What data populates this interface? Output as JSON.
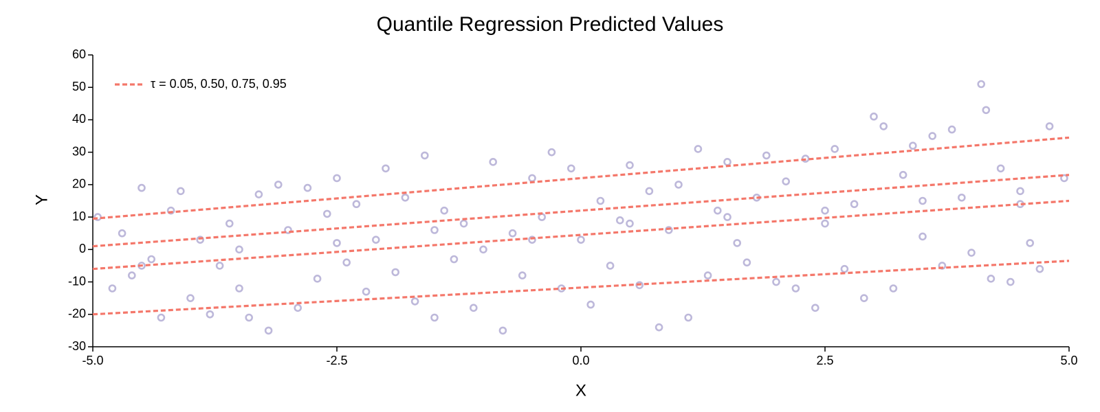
{
  "chart_data": {
    "type": "scatter",
    "title": "Quantile Regression Predicted Values",
    "x_label": "X",
    "y_label": "Y",
    "xlim": [
      -5,
      5
    ],
    "ylim": [
      -30,
      60
    ],
    "xticks": [
      {
        "value": -5,
        "label": "-5.0"
      },
      {
        "value": -2.5,
        "label": "-2.5"
      },
      {
        "value": 0,
        "label": "0.0"
      },
      {
        "value": 2.5,
        "label": "2.5"
      },
      {
        "value": 5,
        "label": "5.0"
      }
    ],
    "yticks": [
      -30,
      -20,
      -10,
      0,
      10,
      20,
      30,
      40,
      50,
      60
    ],
    "grid": false,
    "legend": "top-left",
    "points": {
      "color": "#bdb8da",
      "x": [
        -4.95,
        -4.8,
        -4.7,
        -4.6,
        -4.5,
        -4.4,
        -4.3,
        -4.2,
        -4.1,
        -4.0,
        -3.9,
        -3.8,
        -3.7,
        -3.6,
        -3.5,
        -3.4,
        -3.3,
        -3.2,
        -3.1,
        -3.0,
        -2.9,
        -2.8,
        -2.7,
        -2.6,
        -2.5,
        -2.4,
        -2.3,
        -2.2,
        -2.1,
        -2.0,
        -1.9,
        -1.8,
        -1.7,
        -1.6,
        -1.5,
        -1.4,
        -1.3,
        -1.2,
        -1.1,
        -1.0,
        -0.9,
        -0.8,
        -0.7,
        -0.6,
        -0.5,
        -0.4,
        -0.3,
        -0.2,
        -0.1,
        0.0,
        0.1,
        0.2,
        0.3,
        0.4,
        0.5,
        0.6,
        0.7,
        0.8,
        0.9,
        1.0,
        1.1,
        1.2,
        1.3,
        1.4,
        1.5,
        1.6,
        1.7,
        1.8,
        1.9,
        2.0,
        2.1,
        2.2,
        2.3,
        2.4,
        2.5,
        2.6,
        2.7,
        2.8,
        2.9,
        3.0,
        3.1,
        3.2,
        3.3,
        3.4,
        3.5,
        3.6,
        3.7,
        3.8,
        3.9,
        4.0,
        4.1,
        4.15,
        4.2,
        4.3,
        4.4,
        4.5,
        4.6,
        4.7,
        4.8,
        4.95,
        -4.5,
        -3.5,
        -2.5,
        -1.5,
        -0.5,
        0.5,
        1.5,
        2.5,
        3.5,
        4.5
      ],
      "y": [
        10,
        -12,
        5,
        -8,
        19,
        -3,
        -21,
        12,
        18,
        -15,
        3,
        -20,
        -5,
        8,
        -12,
        -21,
        17,
        -25,
        20,
        6,
        -18,
        19,
        -9,
        11,
        22,
        -4,
        14,
        -13,
        3,
        25,
        -7,
        16,
        -16,
        29,
        -21,
        12,
        -3,
        8,
        -18,
        0,
        27,
        -25,
        5,
        -8,
        22,
        10,
        30,
        -12,
        25,
        3,
        -17,
        15,
        -5,
        9,
        26,
        -11,
        18,
        -24,
        6,
        20,
        -21,
        31,
        -8,
        12,
        27,
        2,
        -4,
        16,
        29,
        -10,
        21,
        -12,
        28,
        -18,
        8,
        31,
        -6,
        14,
        -15,
        41,
        38,
        -12,
        23,
        32,
        4,
        35,
        -5,
        37,
        16,
        -1,
        51,
        43,
        -9,
        25,
        -10,
        18,
        2,
        -6,
        38,
        22,
        -5,
        0,
        2,
        6,
        3,
        8,
        10,
        12,
        15,
        14
      ]
    },
    "lines": {
      "name": "τ = 0.05, 0.50, 0.75, 0.95",
      "color": "#f4776a",
      "series": [
        {
          "x": [
            -5,
            5
          ],
          "y": [
            -20,
            -3.5
          ]
        },
        {
          "x": [
            -5,
            5
          ],
          "y": [
            -6,
            15
          ]
        },
        {
          "x": [
            -5,
            5
          ],
          "y": [
            1,
            23
          ]
        },
        {
          "x": [
            -5,
            5
          ],
          "y": [
            9.5,
            34.5
          ]
        }
      ]
    }
  }
}
